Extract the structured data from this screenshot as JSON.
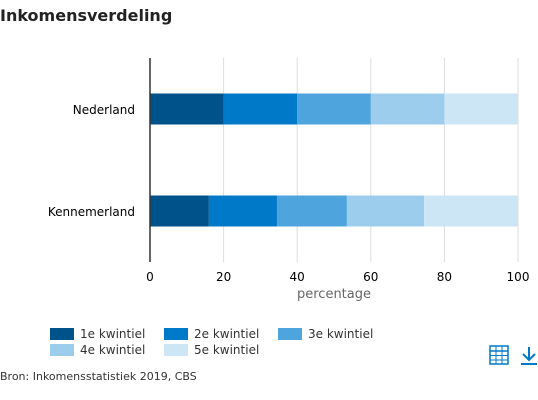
{
  "title": "Inkomensverdeling",
  "source": "Bron: Inkomensstatistiek 2019, CBS",
  "icons": {
    "table": "table-icon",
    "download": "download-icon"
  },
  "chart_data": {
    "type": "bar",
    "orientation": "horizontal",
    "stacked": true,
    "categories": [
      "Nederland",
      "Kennemerland"
    ],
    "series": [
      {
        "name": "1e kwintiel",
        "color": "#00538a",
        "values": [
          20,
          16
        ]
      },
      {
        "name": "2e kwintiel",
        "color": "#0079c9",
        "values": [
          20,
          18.5
        ]
      },
      {
        "name": "3e kwintiel",
        "color": "#4ea4dc",
        "values": [
          20,
          19
        ]
      },
      {
        "name": "4e kwintiel",
        "color": "#9ccdec",
        "values": [
          20,
          21
        ]
      },
      {
        "name": "5e kwintiel",
        "color": "#cde6f6",
        "values": [
          20,
          25.5
        ]
      }
    ],
    "xlabel": "percentage",
    "xlim": [
      0,
      100
    ],
    "xticks": [
      "0",
      "20",
      "40",
      "60",
      "80",
      "100"
    ],
    "grid": true,
    "legend_position": "bottom"
  }
}
